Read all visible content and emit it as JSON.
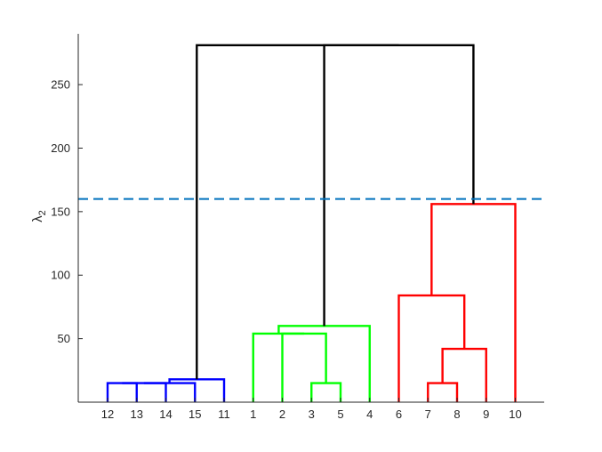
{
  "chart_data": {
    "type": "dendrogram",
    "ylabel": "λ",
    "ylabel_subscript": "2",
    "leaf_order": [
      "12",
      "13",
      "14",
      "15",
      "11",
      "1",
      "2",
      "3",
      "5",
      "4",
      "6",
      "7",
      "8",
      "9",
      "10"
    ],
    "yticks": [
      50,
      100,
      150,
      200,
      250
    ],
    "ylim": [
      0,
      290
    ],
    "threshold": {
      "value": 160,
      "color": "#0072BD",
      "style": "dashed"
    },
    "colors": {
      "blue": "#0000ff",
      "green": "#00ff00",
      "red": "#ff0000",
      "black": "#000000"
    },
    "merges": [
      {
        "left": "12",
        "right": "13",
        "height": 15,
        "color": "blue"
      },
      {
        "left": "12,13",
        "right": "14",
        "height": 15,
        "color": "blue"
      },
      {
        "left": "12,13,14",
        "right": "15",
        "height": 15,
        "color": "blue"
      },
      {
        "left": "12-15",
        "right": "11",
        "height": 18,
        "color": "blue"
      },
      {
        "left": "3",
        "right": "5",
        "height": 15,
        "color": "green"
      },
      {
        "left": "2",
        "right": "3,5",
        "height": 54,
        "color": "green"
      },
      {
        "left": "1",
        "right": "2,3,5",
        "height": 54,
        "color": "green"
      },
      {
        "left": "1,2,3,5",
        "right": "4",
        "height": 60,
        "color": "green"
      },
      {
        "left": "7",
        "right": "8",
        "height": 15,
        "color": "red"
      },
      {
        "left": "7,8",
        "right": "9",
        "height": 42,
        "color": "red"
      },
      {
        "left": "6",
        "right": "7,8,9",
        "height": 84,
        "color": "red"
      },
      {
        "left": "6-9",
        "right": "10",
        "height": 156,
        "color": "red"
      },
      {
        "left": "green",
        "right": "red",
        "height": 281,
        "color": "black"
      },
      {
        "left": "blue",
        "right": "green+red",
        "height": 281,
        "color": "black"
      }
    ]
  }
}
